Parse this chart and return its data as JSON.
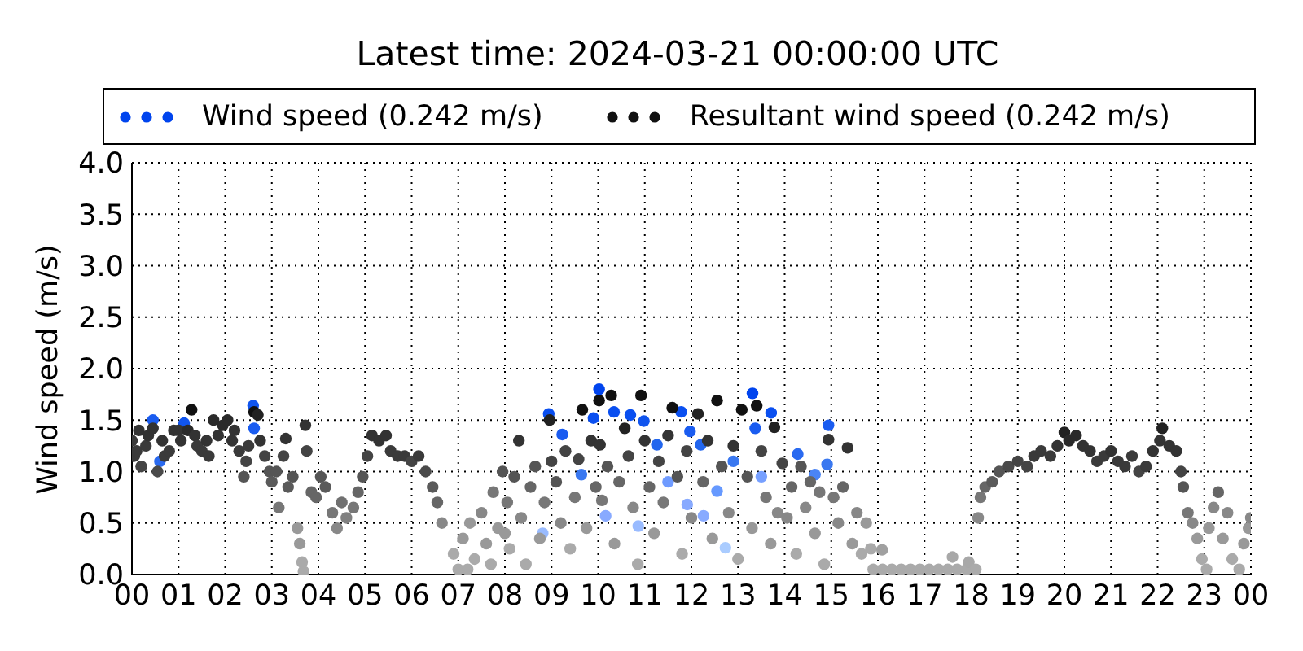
{
  "chart_data": {
    "type": "scatter",
    "title": "Latest time: 2024-03-21 00:00:00 UTC",
    "ylabel": "Wind speed (m/s)",
    "xlim": [
      0,
      24
    ],
    "xticks": [
      {
        "value": 0,
        "label": "00"
      },
      {
        "value": 1,
        "label": "01"
      },
      {
        "value": 2,
        "label": "02"
      },
      {
        "value": 3,
        "label": "03"
      },
      {
        "value": 4,
        "label": "04"
      },
      {
        "value": 5,
        "label": "05"
      },
      {
        "value": 6,
        "label": "06"
      },
      {
        "value": 7,
        "label": "07"
      },
      {
        "value": 8,
        "label": "08"
      },
      {
        "value": 9,
        "label": "09"
      },
      {
        "value": 10,
        "label": "10"
      },
      {
        "value": 11,
        "label": "11"
      },
      {
        "value": 12,
        "label": "12"
      },
      {
        "value": 13,
        "label": "13"
      },
      {
        "value": 14,
        "label": "14"
      },
      {
        "value": 15,
        "label": "15"
      },
      {
        "value": 16,
        "label": "16"
      },
      {
        "value": 17,
        "label": "17"
      },
      {
        "value": 18,
        "label": "18"
      },
      {
        "value": 19,
        "label": "19"
      },
      {
        "value": 20,
        "label": "20"
      },
      {
        "value": 21,
        "label": "21"
      },
      {
        "value": 22,
        "label": "22"
      },
      {
        "value": 23,
        "label": "23"
      },
      {
        "value": 24,
        "label": "00"
      }
    ],
    "ylim": [
      0,
      4
    ],
    "yticks": [
      {
        "value": 0,
        "label": "0.0"
      },
      0.5,
      {
        "value": 1,
        "label": "1.0"
      },
      1.5,
      {
        "value": 2,
        "label": "2.0"
      },
      2.5,
      {
        "value": 3,
        "label": "3.0"
      },
      3.5,
      {
        "value": 4,
        "label": "4.0"
      }
    ],
    "grid": true,
    "legend": "top",
    "marker": "circle",
    "series": [
      {
        "name": "Wind speed (0.242 m/s)",
        "color": "#0044ee",
        "x": [
          0.45,
          0.6,
          1.12,
          2.6,
          2.62,
          8.81,
          8.94,
          9.23,
          9.64,
          9.9,
          10.02,
          10.16,
          10.34,
          10.69,
          10.86,
          10.98,
          11.26,
          11.5,
          11.78,
          11.91,
          11.97,
          12.2,
          12.26,
          12.55,
          12.73,
          12.9,
          13.31,
          13.37,
          13.5,
          13.71,
          14.28,
          14.65,
          14.91,
          14.94
        ],
        "values": [
          1.5,
          1.1,
          1.47,
          1.64,
          1.42,
          0.4,
          1.56,
          1.36,
          0.97,
          1.52,
          1.8,
          0.57,
          1.58,
          1.55,
          0.47,
          1.49,
          1.26,
          0.9,
          1.58,
          0.68,
          1.39,
          1.26,
          0.57,
          0.81,
          0.26,
          1.1,
          1.76,
          1.42,
          0.95,
          1.57,
          1.17,
          0.97,
          1.07,
          1.45
        ],
        "colors": [
          "#1a5cf0",
          "#2a6af0",
          "#1155ee",
          "#1155ee",
          "#1a5cf0",
          "#99bbff",
          "#0a4ff0",
          "#1a5cf0",
          "#3a78f0",
          "#0a4ff0",
          "#0044ee",
          "#88aaff",
          "#0a4ff0",
          "#0a4ff0",
          "#99bbff",
          "#1155ee",
          "#2266ee",
          "#6f9bff",
          "#0a4ff0",
          "#88aaff",
          "#1a5cf0",
          "#2266ee",
          "#88aaff",
          "#6699ff",
          "#aaccff",
          "#3a78f0",
          "#0044ee",
          "#1a5cf0",
          "#77a0ff",
          "#0a4ff0",
          "#2a6af0",
          "#4a84f5",
          "#3a78f0",
          "#1a5cf0"
        ]
      },
      {
        "name": "Resultant wind speed (0.242 m/s)",
        "color": "#111111",
        "x": [
          0.0,
          0.05,
          0.1,
          0.15,
          0.2,
          0.3,
          0.35,
          0.45,
          0.55,
          0.65,
          0.7,
          0.8,
          0.9,
          1.0,
          1.05,
          1.2,
          1.28,
          1.35,
          1.4,
          1.5,
          1.6,
          1.65,
          1.75,
          1.85,
          1.95,
          2.05,
          2.15,
          2.2,
          2.3,
          2.4,
          2.45,
          2.5,
          2.62,
          2.7,
          2.75,
          2.85,
          2.95,
          3.0,
          3.1,
          3.15,
          3.25,
          3.3,
          3.35,
          3.45,
          3.55,
          3.6,
          3.65,
          3.68,
          3.72,
          3.75,
          3.85,
          3.95,
          4.05,
          4.15,
          4.3,
          4.4,
          4.5,
          4.6,
          4.75,
          4.85,
          4.95,
          5.05,
          5.15,
          5.3,
          5.45,
          5.55,
          5.7,
          5.85,
          6.0,
          6.15,
          6.3,
          6.45,
          6.55,
          6.65,
          6.9,
          7.0,
          7.1,
          7.2,
          7.25,
          7.35,
          7.5,
          7.6,
          7.7,
          7.75,
          7.85,
          7.95,
          8.0,
          8.05,
          8.1,
          8.2,
          8.3,
          8.35,
          8.45,
          8.55,
          8.65,
          8.75,
          8.85,
          8.96,
          9.0,
          9.1,
          9.2,
          9.3,
          9.4,
          9.5,
          9.58,
          9.66,
          9.75,
          9.85,
          9.95,
          10.02,
          10.04,
          10.08,
          10.2,
          10.28,
          10.35,
          10.45,
          10.57,
          10.65,
          10.75,
          10.85,
          10.92,
          11.0,
          11.1,
          11.2,
          11.3,
          11.4,
          11.5,
          11.59,
          11.7,
          11.8,
          11.9,
          12.0,
          12.14,
          12.25,
          12.35,
          12.45,
          12.55,
          12.65,
          12.8,
          12.9,
          13.0,
          13.08,
          13.2,
          13.3,
          13.4,
          13.5,
          13.6,
          13.7,
          13.78,
          13.85,
          13.95,
          14.05,
          14.15,
          14.25,
          14.35,
          14.45,
          14.55,
          14.65,
          14.75,
          14.85,
          14.94,
          15.05,
          15.15,
          15.25,
          15.35,
          15.45,
          15.55,
          15.65,
          15.75,
          15.85,
          15.9,
          16.09,
          16.1,
          16.3,
          16.5,
          16.7,
          16.9,
          17.1,
          17.3,
          17.5,
          17.6,
          17.7,
          17.9,
          17.95,
          18.1,
          18.15,
          18.2,
          18.3,
          18.45,
          18.6,
          18.8,
          19.0,
          19.2,
          19.35,
          19.5,
          19.7,
          19.85,
          20.0,
          20.1,
          20.25,
          20.4,
          20.55,
          20.7,
          20.85,
          21.0,
          21.15,
          21.3,
          21.45,
          21.6,
          21.75,
          21.9,
          22.05,
          22.1,
          22.25,
          22.4,
          22.5,
          22.55,
          22.65,
          22.75,
          22.85,
          22.95,
          23.05,
          23.1,
          23.2,
          23.3,
          23.4,
          23.5,
          23.6,
          23.75,
          23.85,
          23.95,
          24.0
        ],
        "values": [
          1.3,
          1.15,
          1.2,
          1.4,
          1.05,
          1.25,
          1.35,
          1.42,
          1.0,
          1.3,
          1.15,
          1.2,
          1.4,
          1.4,
          1.3,
          1.4,
          1.6,
          1.35,
          1.25,
          1.2,
          1.3,
          1.15,
          1.5,
          1.35,
          1.45,
          1.5,
          1.3,
          1.4,
          1.2,
          0.95,
          1.1,
          1.25,
          1.58,
          1.55,
          1.3,
          1.15,
          1.0,
          0.9,
          1.0,
          0.65,
          1.15,
          1.32,
          0.85,
          0.95,
          0.45,
          0.3,
          0.12,
          0.03,
          1.45,
          1.2,
          0.8,
          0.75,
          0.95,
          0.85,
          0.6,
          0.45,
          0.7,
          0.55,
          0.65,
          0.8,
          0.95,
          1.15,
          1.35,
          1.3,
          1.35,
          1.2,
          1.15,
          1.15,
          1.1,
          1.15,
          1.0,
          0.85,
          0.7,
          0.5,
          0.2,
          0.05,
          0.35,
          0.05,
          0.5,
          0.15,
          0.6,
          0.3,
          0.1,
          0.8,
          0.45,
          1.0,
          0.4,
          0.7,
          0.25,
          0.95,
          1.3,
          0.55,
          0.1,
          0.85,
          1.05,
          0.35,
          0.7,
          1.5,
          1.1,
          0.9,
          0.5,
          1.2,
          0.25,
          0.75,
          1.12,
          1.6,
          0.45,
          1.3,
          0.85,
          1.69,
          1.26,
          0.72,
          1.05,
          1.74,
          0.3,
          0.9,
          1.42,
          1.15,
          0.65,
          0.1,
          1.74,
          1.3,
          0.85,
          0.4,
          1.1,
          0.7,
          1.35,
          1.62,
          0.95,
          0.2,
          1.2,
          0.55,
          1.56,
          0.9,
          1.3,
          0.35,
          1.69,
          1.05,
          0.6,
          1.25,
          0.15,
          1.6,
          0.95,
          0.45,
          1.64,
          1.2,
          0.75,
          0.3,
          1.43,
          0.6,
          1.08,
          0.55,
          0.85,
          0.2,
          1.05,
          0.65,
          0.9,
          0.4,
          0.8,
          0.1,
          1.31,
          0.75,
          0.5,
          0.85,
          1.23,
          0.3,
          0.6,
          0.2,
          0.5,
          0.25,
          0.05,
          0.24,
          0.05,
          0.05,
          0.05,
          0.05,
          0.05,
          0.05,
          0.05,
          0.05,
          0.17,
          0.05,
          0.05,
          0.12,
          0.05,
          0.55,
          0.75,
          0.85,
          0.9,
          1.0,
          1.05,
          1.1,
          1.05,
          1.15,
          1.2,
          1.15,
          1.25,
          1.38,
          1.3,
          1.35,
          1.25,
          1.2,
          1.1,
          1.15,
          1.2,
          1.1,
          1.05,
          1.15,
          1.0,
          1.05,
          1.2,
          1.3,
          1.42,
          1.25,
          1.2,
          1.0,
          0.85,
          0.6,
          0.5,
          0.35,
          0.15,
          0.05,
          0.45,
          0.65,
          0.8,
          0.35,
          0.6,
          0.15,
          0.05,
          0.3,
          0.45,
          0.55
        ],
        "colors": [
          "#3a3a3a",
          "#3a3a3a",
          "#3a3a3a",
          "#333333",
          "#444444",
          "#3a3a3a",
          "#333333",
          "#333333",
          "#4a4a4a",
          "#333333",
          "#3a3a3a",
          "#3a3a3a",
          "#333333",
          "#333333",
          "#333333",
          "#2a2a2a",
          "#111111",
          "#333333",
          "#3a3a3a",
          "#3a3a3a",
          "#333333",
          "#3a3a3a",
          "#2a2a2a",
          "#333333",
          "#2a2a2a",
          "#2a2a2a",
          "#333333",
          "#333333",
          "#3a3a3a",
          "#555555",
          "#444444",
          "#3a3a3a",
          "#111111",
          "#222222",
          "#333333",
          "#444444",
          "#555555",
          "#5a5a5a",
          "#555555",
          "#777777",
          "#444444",
          "#333333",
          "#5a5a5a",
          "#555555",
          "#999999",
          "#999999",
          "#aaaaaa",
          "#aaaaaa",
          "#333333",
          "#444444",
          "#666666",
          "#666666",
          "#555555",
          "#5a5a5a",
          "#777777",
          "#888888",
          "#707070",
          "#808080",
          "#777777",
          "#666666",
          "#555555",
          "#444444",
          "#333333",
          "#333333",
          "#333333",
          "#3a3a3a",
          "#3a3a3a",
          "#3a3a3a",
          "#444444",
          "#3a3a3a",
          "#4a4a4a",
          "#5a5a5a",
          "#666666",
          "#888888",
          "#aaaaaa",
          "#aaaaaa",
          "#999999",
          "#aaaaaa",
          "#999999",
          "#aaaaaa",
          "#888888",
          "#999999",
          "#aaaaaa",
          "#777777",
          "#999999",
          "#555555",
          "#999999",
          "#777777",
          "#aaaaaa",
          "#555555",
          "#333333",
          "#888888",
          "#aaaaaa",
          "#666666",
          "#555555",
          "#999999",
          "#777777",
          "#222222",
          "#444444",
          "#555555",
          "#888888",
          "#444444",
          "#aaaaaa",
          "#777777",
          "#444444",
          "#111111",
          "#999999",
          "#333333",
          "#666666",
          "#111111",
          "#333333",
          "#777777",
          "#555555",
          "#111111",
          "#999999",
          "#666666",
          "#222222",
          "#444444",
          "#888888",
          "#aaaaaa",
          "#111111",
          "#333333",
          "#666666",
          "#999999",
          "#444444",
          "#777777",
          "#333333",
          "#111111",
          "#555555",
          "#aaaaaa",
          "#444444",
          "#888888",
          "#222222",
          "#666666",
          "#333333",
          "#999999",
          "#111111",
          "#555555",
          "#888888",
          "#333333",
          "#aaaaaa",
          "#111111",
          "#555555",
          "#999999",
          "#111111",
          "#444444",
          "#777777",
          "#999999",
          "#222222",
          "#888888",
          "#444444",
          "#888888",
          "#666666",
          "#aaaaaa",
          "#555555",
          "#888888",
          "#666666",
          "#999999",
          "#777777",
          "#aaaaaa",
          "#333333",
          "#777777",
          "#888888",
          "#666666",
          "#333333",
          "#999999",
          "#888888",
          "#aaaaaa",
          "#999999",
          "#aaaaaa",
          "#aaaaaa",
          "#a0a0a0",
          "#aaaaaa",
          "#aaaaaa",
          "#aaaaaa",
          "#aaaaaa",
          "#aaaaaa",
          "#aaaaaa",
          "#aaaaaa",
          "#aaaaaa",
          "#a8a8a8",
          "#aaaaaa",
          "#aaaaaa",
          "#a8a8a8",
          "#aaaaaa",
          "#888888",
          "#777777",
          "#666666",
          "#5a5a5a",
          "#555555",
          "#4a4a4a",
          "#444444",
          "#444444",
          "#3a3a3a",
          "#3a3a3a",
          "#3a3a3a",
          "#333333",
          "#222222",
          "#2a2a2a",
          "#2a2a2a",
          "#333333",
          "#333333",
          "#3a3a3a",
          "#3a3a3a",
          "#333333",
          "#3a3a3a",
          "#3a3a3a",
          "#3a3a3a",
          "#444444",
          "#3a3a3a",
          "#333333",
          "#333333",
          "#222222",
          "#333333",
          "#333333",
          "#444444",
          "#555555",
          "#777777",
          "#888888",
          "#999999",
          "#aaaaaa",
          "#aaaaaa",
          "#999999",
          "#888888",
          "#666666",
          "#999999",
          "#888888",
          "#aaaaaa",
          "#aaaaaa",
          "#999999",
          "#999999",
          "#888888"
        ]
      }
    ]
  }
}
